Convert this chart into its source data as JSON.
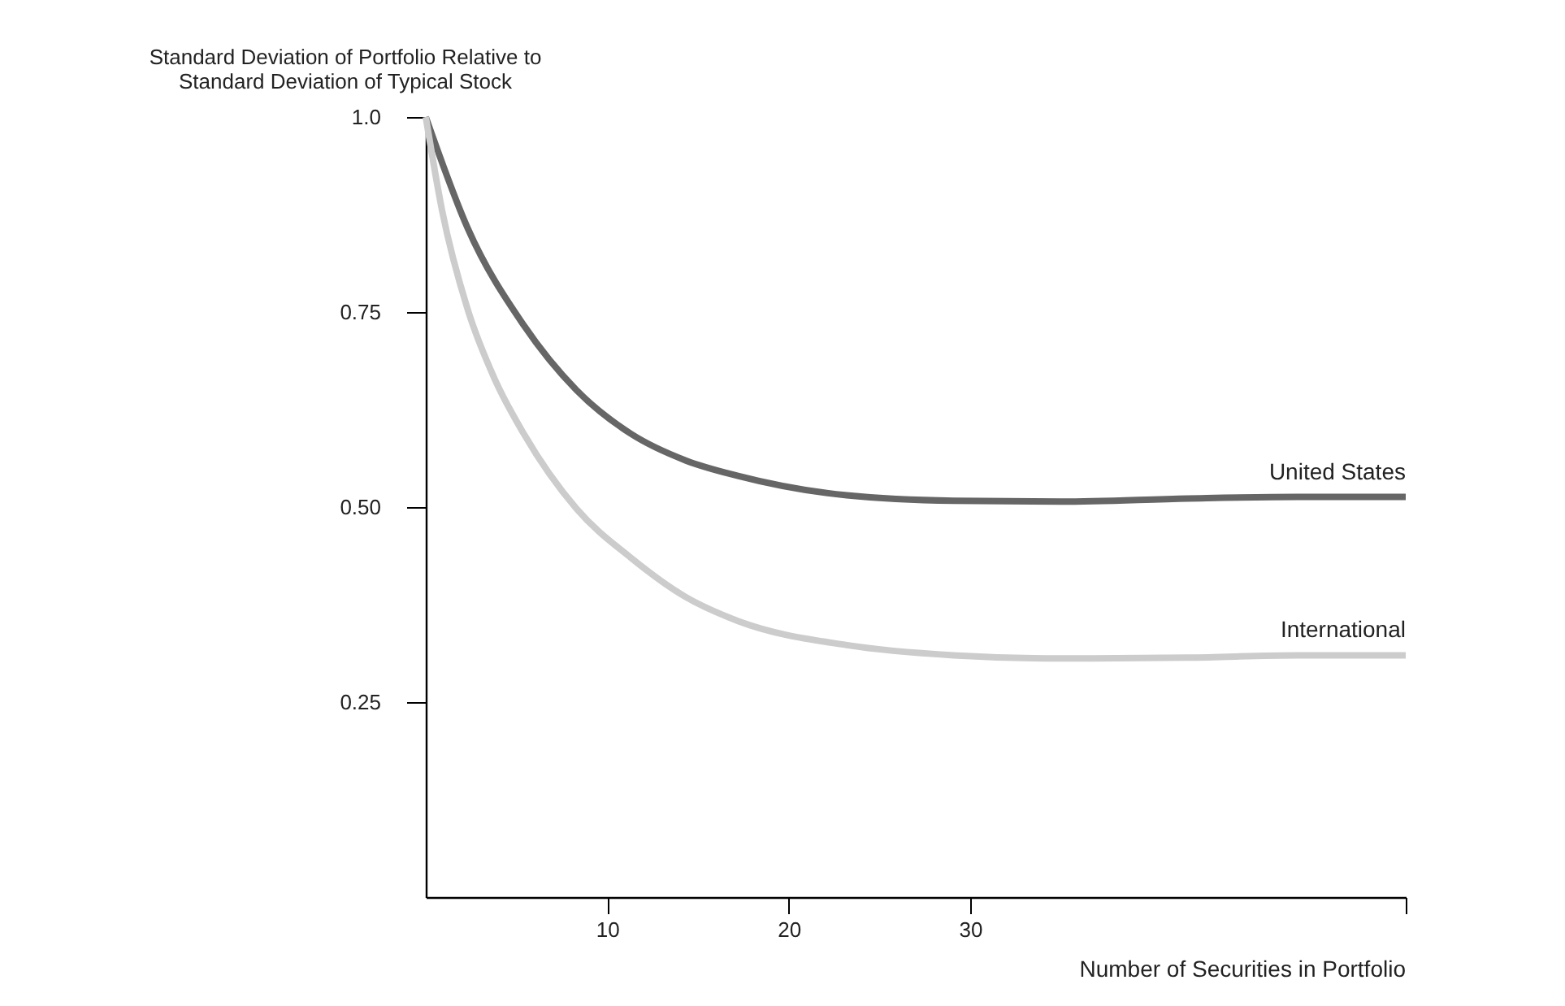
{
  "chart_data": {
    "type": "line",
    "xlabel": "Number of Securities in Portfolio",
    "ylabel": "Standard Deviation of Portfolio Relative to\nStandard Deviation of Typical Stock",
    "xlim": [
      0,
      54
    ],
    "ylim": [
      0,
      1.0
    ],
    "xticks": [
      10,
      20,
      30,
      {
        "value": 54,
        "label": null
      }
    ],
    "yticks": [
      0.25,
      {
        "value": 0.5,
        "label": "0.50"
      },
      0.75,
      {
        "value": 1.0,
        "label": "1.0"
      }
    ],
    "grid": false,
    "line_style": "solid",
    "marker": "none",
    "series": [
      {
        "name": "United States",
        "color": "#666666",
        "x": [
          0,
          2.3,
          5.4,
          8.3,
          11.3,
          14.3,
          17.2,
          23.2,
          29.1,
          35,
          42,
          48,
          54
        ],
        "values": [
          1.0,
          0.858,
          0.733,
          0.65,
          0.594,
          0.56,
          0.54,
          0.515,
          0.508,
          0.507,
          0.511,
          0.513,
          0.513
        ]
      },
      {
        "name": "International",
        "color": "#cccccc",
        "x": [
          0,
          0.9,
          2.3,
          3.8,
          5.4,
          8.3,
          11.3,
          14.3,
          17.2,
          23.2,
          29.1,
          35,
          42,
          48,
          54
        ],
        "values": [
          1.0,
          0.88,
          0.754,
          0.664,
          0.594,
          0.498,
          0.435,
          0.385,
          0.354,
          0.323,
          0.31,
          0.306,
          0.307,
          0.31,
          0.31
        ]
      }
    ]
  }
}
